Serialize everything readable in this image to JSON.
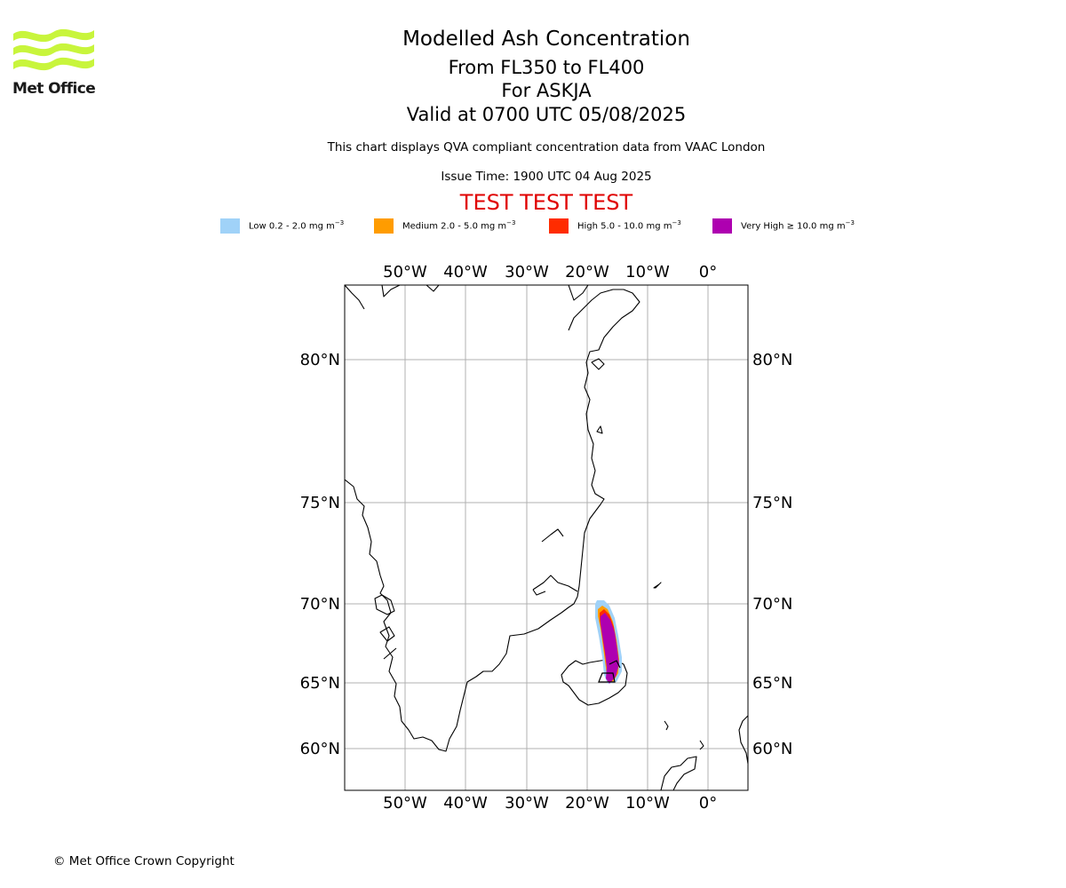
{
  "logo": {
    "text": "Met Office",
    "color": "#c8f53c"
  },
  "title": {
    "line1": "Modelled Ash Concentration",
    "line2": "From FL350 to FL400",
    "line3": "For ASKJA",
    "line4": "Valid at 0700 UTC 05/08/2025"
  },
  "subtitle": "This chart displays QVA compliant concentration data from VAAC London",
  "issue_time": "Issue Time: 1900 UTC 04 Aug 2025",
  "test_banner": {
    "text": "TEST TEST TEST",
    "color": "#e00000"
  },
  "legend": [
    {
      "label": "Low 0.2 - 2.0 mg m",
      "unit_exp": "−3",
      "color": "#a0d2f8"
    },
    {
      "label": "Medium 2.0 - 5.0 mg m",
      "unit_exp": "−3",
      "color": "#ff9c00"
    },
    {
      "label": "High 5.0 - 10.0 mg m",
      "unit_exp": "−3",
      "color": "#ff2c00"
    },
    {
      "label": "Very High  ≥  10.0 mg m",
      "unit_exp": "−3",
      "color": "#ae00b0"
    }
  ],
  "map": {
    "lon_ticks": [
      "50°W",
      "40°W",
      "30°W",
      "20°W",
      "10°W",
      "0°"
    ],
    "lat_ticks": [
      "80°N",
      "75°N",
      "70°N",
      "65°N",
      "60°N"
    ],
    "volcano": "ASKJA",
    "lon_range": [
      -60,
      6
    ],
    "gridline_color": "#b0b0b0"
  },
  "copyright": "© Met Office Crown Copyright"
}
